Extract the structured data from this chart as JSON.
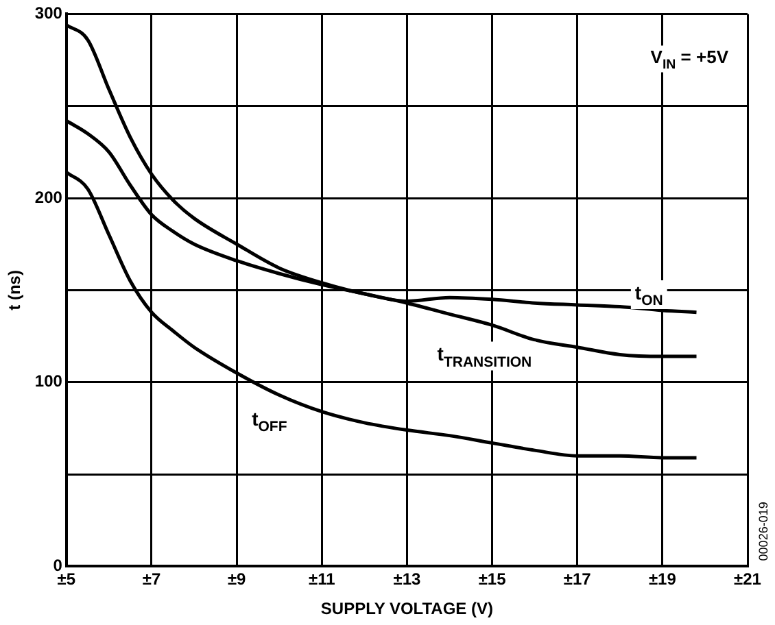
{
  "chart_data": {
    "type": "line",
    "xlabel": "SUPPLY VOLTAGE (V)",
    "ylabel": "t (ns)",
    "x": [
      5,
      5.5,
      6,
      6.5,
      7,
      7.5,
      8,
      9,
      10,
      11,
      12,
      13,
      14,
      15,
      16,
      17,
      18,
      19,
      19.8
    ],
    "series": [
      {
        "name": "t$_{ON}$",
        "color": "#000000",
        "values": [
          294,
          286,
          259,
          233,
          213,
          199,
          189,
          175,
          162,
          154,
          148,
          144,
          146,
          145,
          143,
          142,
          141,
          139,
          138
        ]
      },
      {
        "name": "t$_{TRANSITION}$",
        "color": "#000000",
        "values": [
          242,
          235,
          225,
          207,
          191,
          182,
          175,
          166,
          159,
          153,
          148,
          143,
          137,
          131,
          123,
          119,
          115,
          114,
          114
        ]
      },
      {
        "name": "t$_{OFF}$",
        "color": "#000000",
        "values": [
          214,
          205,
          180,
          155,
          138,
          128,
          119,
          105,
          93,
          84,
          78,
          74,
          71,
          67,
          63,
          60,
          60,
          59,
          59
        ]
      }
    ],
    "xlim": [
      5,
      21
    ],
    "xticks": [
      {
        "value": 5,
        "label": "±5"
      },
      {
        "value": 7,
        "label": "±7"
      },
      {
        "value": 9,
        "label": "±9"
      },
      {
        "value": 11,
        "label": "±11"
      },
      {
        "value": 13,
        "label": "±13"
      },
      {
        "value": 15,
        "label": "±15"
      },
      {
        "value": 17,
        "label": "±17"
      },
      {
        "value": 19,
        "label": "±19"
      },
      {
        "value": 21,
        "label": "±21"
      }
    ],
    "ylim": [
      0,
      300
    ],
    "yticks": [
      0,
      {
        "value": 50,
        "label": null
      },
      100,
      {
        "value": 150,
        "label": null
      },
      200,
      {
        "value": 250,
        "label": null
      },
      300
    ],
    "grid": true,
    "legend": false,
    "annotations": [
      "V$_{IN}$ = +5V",
      "00026-019"
    ]
  }
}
